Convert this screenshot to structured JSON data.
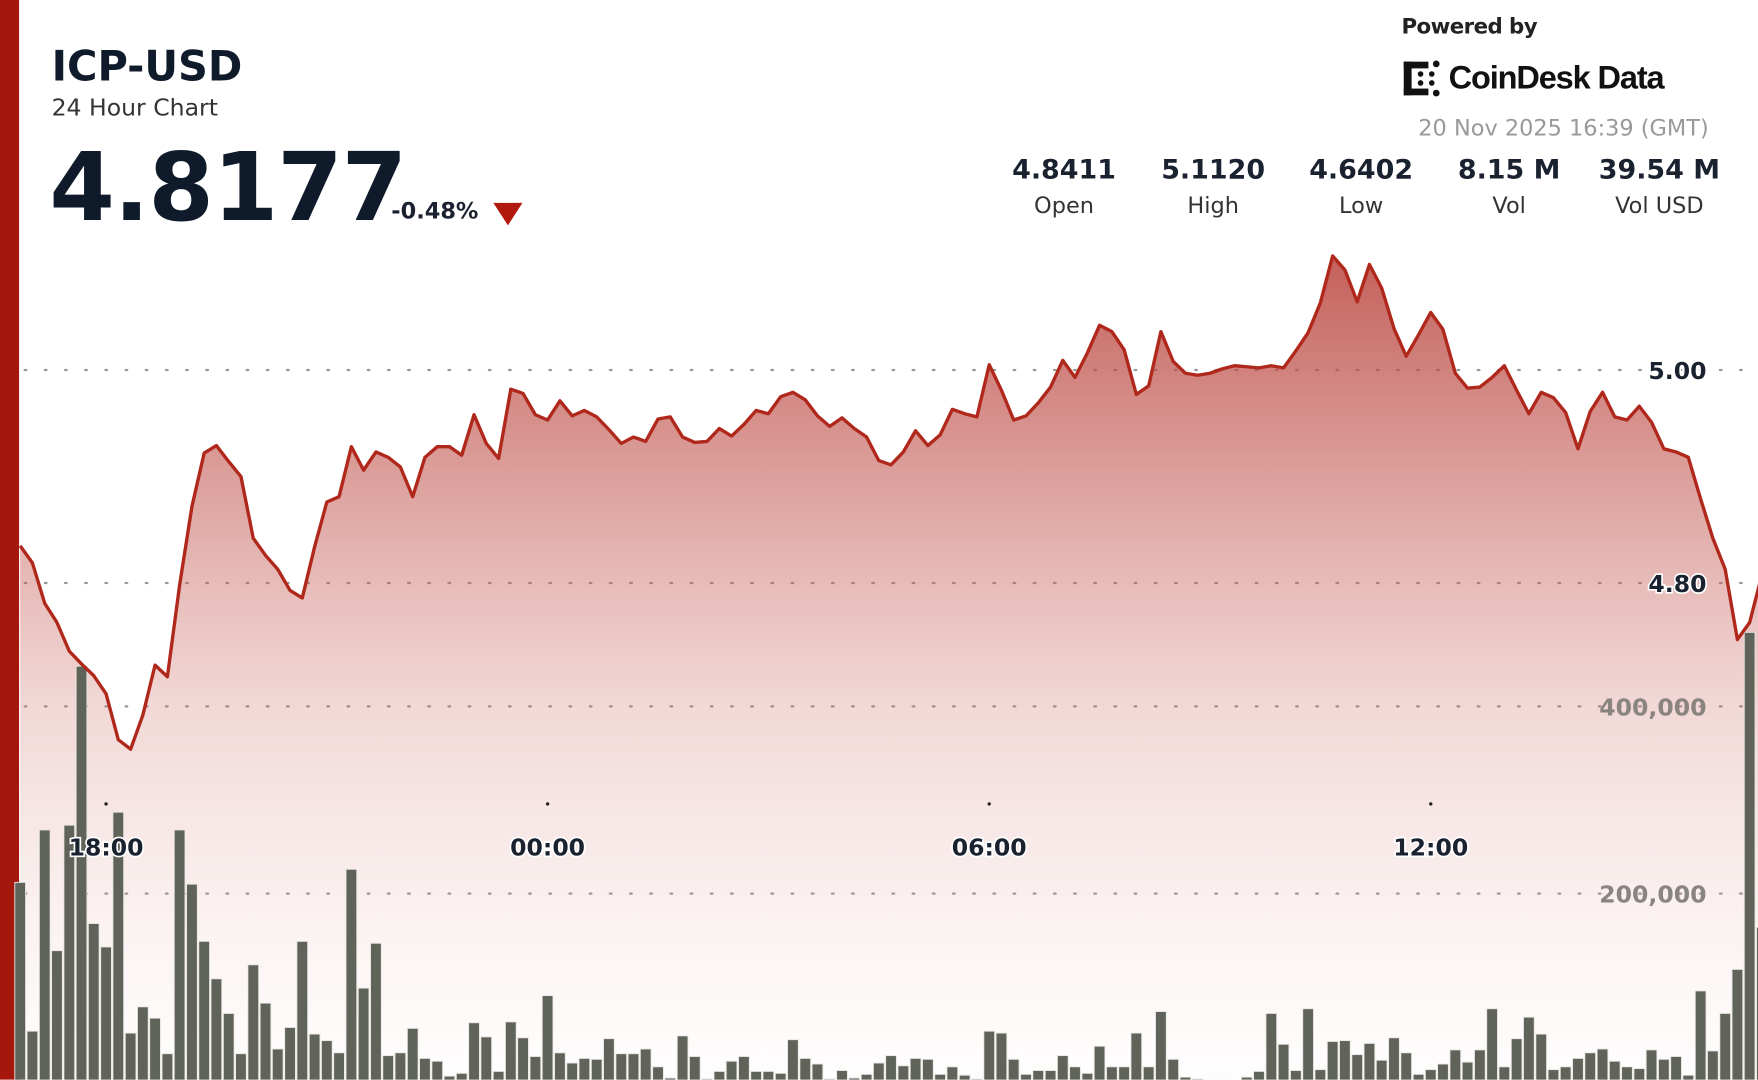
{
  "header": {
    "symbol": "ICP-USD",
    "subtitle": "24 Hour Chart",
    "price": "4.8177",
    "change": "-0.48%",
    "change_direction_icon": "triangle-down-icon",
    "powered_by": "Powered by",
    "brand": "CoinDesk Data",
    "timestamp": "20 Nov 2025 16:39 (GMT)"
  },
  "stats": [
    {
      "value": "4.8411",
      "label": "Open"
    },
    {
      "value": "5.1120",
      "label": "High"
    },
    {
      "value": "4.6402",
      "label": "Low"
    },
    {
      "value": "8.15 M",
      "label": "Vol"
    },
    {
      "value": "39.54 M",
      "label": "Vol USD"
    }
  ],
  "colors": {
    "accent": "#a5170c",
    "line": "#b0281c",
    "fill": "#b8403a",
    "volume_bars": "#5f635a",
    "text": "#0f1a2a"
  },
  "chart_data": {
    "type": "area",
    "grid": "dotted horizontal",
    "x_ticks": [
      "18:00",
      "00:00",
      "06:00",
      "12:00"
    ],
    "price_axis": {
      "ticks": [
        "5.00",
        "4.80"
      ],
      "tick_values": [
        5.0,
        4.8
      ]
    },
    "volume_axis": {
      "ticks": [
        "400,000",
        "200,000"
      ],
      "tick_values": [
        400000,
        200000
      ]
    },
    "x": [
      "16:50",
      "17:00",
      "17:10",
      "17:20",
      "17:30",
      "17:40",
      "17:50",
      "18:00",
      "18:10",
      "18:20",
      "18:30",
      "18:40",
      "18:50",
      "19:00",
      "19:10",
      "19:20",
      "19:30",
      "19:40",
      "19:50",
      "20:00",
      "20:10",
      "20:20",
      "20:30",
      "20:40",
      "20:50",
      "21:00",
      "21:10",
      "21:20",
      "21:30",
      "21:40",
      "21:50",
      "22:00",
      "22:10",
      "22:20",
      "22:30",
      "22:40",
      "22:50",
      "23:00",
      "23:10",
      "23:20",
      "23:30",
      "23:40",
      "23:50",
      "00:00",
      "00:10",
      "00:20",
      "00:30",
      "00:40",
      "00:50",
      "01:00",
      "01:10",
      "01:20",
      "01:30",
      "01:40",
      "01:50",
      "02:00",
      "02:10",
      "02:20",
      "02:30",
      "02:40",
      "02:50",
      "03:00",
      "03:10",
      "03:20",
      "03:30",
      "03:40",
      "03:50",
      "04:00",
      "04:10",
      "04:20",
      "04:30",
      "04:40",
      "04:50",
      "05:00",
      "05:10",
      "05:20",
      "05:30",
      "05:40",
      "05:50",
      "06:00",
      "06:10",
      "06:20",
      "06:30",
      "06:40",
      "06:50",
      "07:00",
      "07:10",
      "07:20",
      "07:30",
      "07:40",
      "07:50",
      "08:00",
      "08:10",
      "08:20",
      "08:30",
      "08:40",
      "08:50",
      "09:00",
      "09:10",
      "09:20",
      "09:30",
      "09:40",
      "09:50",
      "10:00",
      "10:10",
      "10:20",
      "10:30",
      "10:40",
      "10:50",
      "11:00",
      "11:10",
      "11:20",
      "11:30",
      "11:40",
      "11:50",
      "12:00",
      "12:10",
      "12:20",
      "12:30",
      "12:40",
      "12:50",
      "13:00",
      "13:10",
      "13:20",
      "13:30",
      "13:40",
      "13:50",
      "14:00",
      "14:10",
      "14:20",
      "14:30",
      "14:40",
      "14:50",
      "15:00",
      "15:10",
      "15:20",
      "15:30",
      "15:40",
      "15:50",
      "16:00",
      "16:10",
      "16:20",
      "16:30",
      "16:40"
    ],
    "series": [
      {
        "values": [
          4.835,
          4.819,
          4.781,
          4.763,
          4.736,
          4.724,
          4.713,
          4.696,
          4.653,
          4.644,
          4.676,
          4.723,
          4.712,
          4.798,
          4.872,
          4.922,
          4.929,
          4.914,
          4.9,
          4.842,
          4.826,
          4.813,
          4.793,
          4.786,
          4.834,
          4.876,
          4.881,
          4.928,
          4.906,
          4.923,
          4.918,
          4.909,
          4.881,
          4.918,
          4.928,
          4.928,
          4.92,
          4.958,
          4.931,
          4.917,
          4.982,
          4.978,
          4.958,
          4.953,
          4.971,
          4.957,
          4.962,
          4.956,
          4.944,
          4.931,
          4.937,
          4.933,
          4.954,
          4.956,
          4.937,
          4.932,
          4.933,
          4.945,
          4.938,
          4.949,
          4.962,
          4.959,
          4.975,
          4.979,
          4.972,
          4.957,
          4.947,
          4.955,
          4.945,
          4.937,
          4.915,
          4.911,
          4.923,
          4.943,
          4.929,
          4.939,
          4.963,
          4.959,
          4.956,
          5.005,
          4.981,
          4.953,
          4.957,
          4.969,
          4.984,
          5.009,
          4.993,
          5.016,
          5.042,
          5.036,
          5.019,
          4.977,
          4.985,
          5.036,
          5.008,
          4.997,
          4.995,
          4.997,
          5.001,
          5.004,
          5.003,
          5.002,
          5.004,
          5.002,
          5.018,
          5.035,
          5.063,
          5.107,
          5.094,
          5.064,
          5.099,
          5.077,
          5.039,
          5.013,
          5.033,
          5.054,
          5.038,
          4.997,
          4.983,
          4.984,
          4.993,
          5.004,
          4.981,
          4.959,
          4.979,
          4.974,
          4.96,
          4.926,
          4.961,
          4.979,
          4.956,
          4.953,
          4.966,
          4.951,
          4.926,
          4.923,
          4.918,
          4.879,
          4.842,
          4.813,
          4.747,
          4.763,
          4.808,
          4.818
        ]
      },
      {
        "values": [
          212000,
          53000,
          268000,
          139000,
          273000,
          443000,
          168000,
          143000,
          287000,
          51000,
          79000,
          67000,
          29000,
          268000,
          210000,
          149000,
          109000,
          72000,
          29000,
          124000,
          83000,
          34000,
          57000,
          149000,
          50000,
          43000,
          30000,
          226000,
          99000,
          147000,
          27000,
          30000,
          56000,
          24000,
          21000,
          5000,
          8000,
          62000,
          47000,
          10000,
          63000,
          46000,
          26000,
          91000,
          30000,
          19000,
          24000,
          23000,
          45000,
          29000,
          29000,
          34000,
          15000,
          3000,
          48000,
          26000,
          2000,
          10000,
          21000,
          26000,
          10000,
          10000,
          8000,
          44000,
          24000,
          18000,
          2000,
          11000,
          3000,
          7000,
          19000,
          27000,
          16000,
          24000,
          23000,
          7000,
          15000,
          6000,
          2000,
          53000,
          51000,
          23000,
          7000,
          11000,
          11000,
          27000,
          15000,
          8000,
          37000,
          15000,
          15000,
          51000,
          15000,
          74000,
          23000,
          4000,
          2000,
          1000,
          1000,
          500,
          4000,
          10000,
          72000,
          39000,
          11000,
          77000,
          12000,
          42000,
          43000,
          28000,
          40000,
          22000,
          46000,
          30000,
          7000,
          12000,
          18000,
          33000,
          20000,
          33000,
          77000,
          15000,
          45000,
          68000,
          50000,
          12000,
          15000,
          24000,
          30000,
          34000,
          21000,
          15000,
          13000,
          33000,
          23000,
          26000,
          6000,
          96000,
          32000,
          72000,
          119000,
          479000,
          164000,
          120000
        ]
      }
    ]
  }
}
